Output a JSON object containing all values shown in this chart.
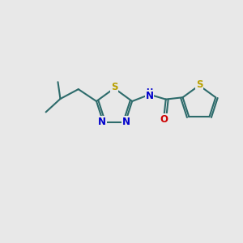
{
  "bg_color": "#e8e8e8",
  "bond_color": "#2d6b6b",
  "bond_width": 1.5,
  "S_color": "#b8a000",
  "N_color": "#0000cc",
  "O_color": "#cc0000",
  "figsize": [
    3.0,
    3.0
  ],
  "dpi": 100,
  "xlim": [
    0,
    10
  ],
  "ylim": [
    0,
    10
  ]
}
